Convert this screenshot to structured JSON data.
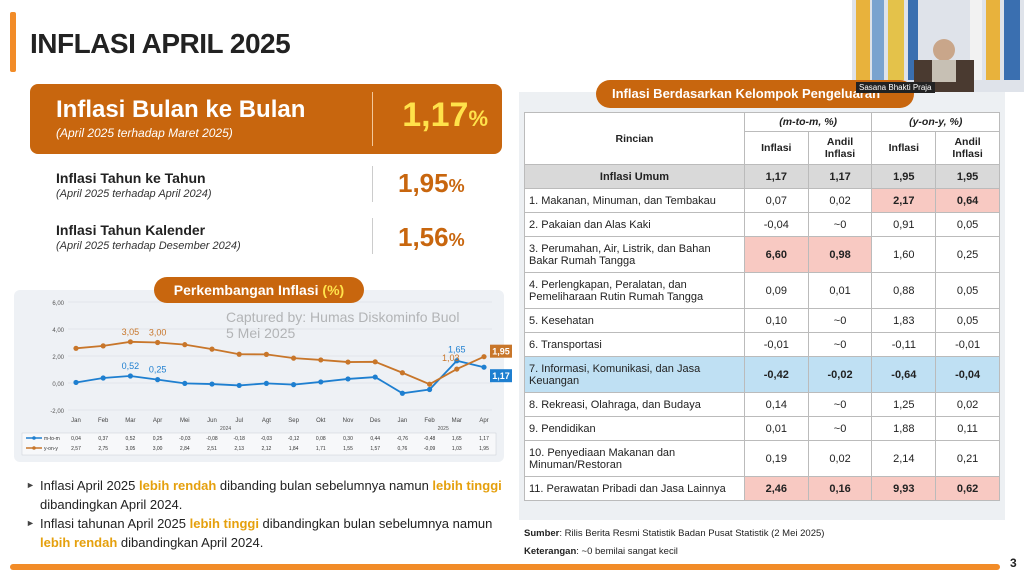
{
  "title": "INFLASI APRIL 2025",
  "mom": {
    "label": "Inflasi Bulan ke Bulan",
    "sub": "(April 2025 terhadap Maret 2025)",
    "value": "1,17",
    "unit": "%"
  },
  "yoy": {
    "label": "Inflasi Tahun ke Tahun",
    "sub": "(April 2025 terhadap April 2024)",
    "value": "1,95",
    "unit": "%"
  },
  "ytd": {
    "label": "Inflasi Tahun Kalender",
    "sub": "(April 2025 terhadap Desember 2024)",
    "value": "1,56",
    "unit": "%"
  },
  "chart_pill": {
    "text": "Perkembangan Inflasi ",
    "unit": "(%)"
  },
  "watermark": {
    "line1": "Captured by: Humas Diskominfo Buol",
    "line2": "5 Mei 2025"
  },
  "chart_data": {
    "type": "line",
    "categories": [
      "Jan",
      "Feb",
      "Mar",
      "Apr",
      "Mei",
      "Jun",
      "Jul",
      "Agt",
      "Sep",
      "Okt",
      "Nov",
      "Des",
      "Jan",
      "Feb",
      "Mar",
      "Apr"
    ],
    "year_labels": [
      "2024",
      "2025"
    ],
    "ylim": [
      -2,
      6
    ],
    "yticks": [
      "6,00",
      "4,00",
      "2,00",
      "0,00",
      "-2,00"
    ],
    "series": [
      {
        "name": "m-to-m",
        "color": "#1e7fd0",
        "values": [
          0.04,
          0.37,
          0.52,
          0.25,
          -0.03,
          -0.08,
          -0.18,
          -0.03,
          -0.12,
          0.08,
          0.3,
          0.44,
          -0.76,
          -0.48,
          1.65,
          1.17
        ],
        "labels": [
          "0,04",
          "0,37",
          "0,52",
          "0,25",
          "-0,03",
          "-0,08",
          "-0,18",
          "-0,03",
          "-0,12",
          "0,08",
          "0,30",
          "0,44",
          "-0,76",
          "-0,48",
          "1,65",
          "1,17"
        ]
      },
      {
        "name": "y-on-y",
        "color": "#c8762a",
        "values": [
          2.57,
          2.75,
          3.05,
          3.0,
          2.84,
          2.51,
          2.13,
          2.12,
          1.84,
          1.71,
          1.55,
          1.57,
          0.76,
          -0.09,
          1.03,
          1.95
        ],
        "labels": [
          "2,57",
          "2,75",
          "3,05",
          "3,00",
          "2,84",
          "2,51",
          "2,13",
          "2,12",
          "1,84",
          "1,71",
          "1,55",
          "1,57",
          "0,76",
          "-0,09",
          "1,03",
          "1,95"
        ]
      }
    ],
    "annotations": [
      {
        "series": 1,
        "index": 2,
        "text": "3,05"
      },
      {
        "series": 1,
        "index": 3,
        "text": "3,00"
      },
      {
        "series": 0,
        "index": 2,
        "text": "0,52"
      },
      {
        "series": 0,
        "index": 3,
        "text": "0,25"
      },
      {
        "series": 1,
        "index": 14,
        "text": "1,03"
      },
      {
        "series": 0,
        "index": 14,
        "text": "1,65"
      },
      {
        "series": 1,
        "index": 15,
        "text": "1,95",
        "boxed": true
      },
      {
        "series": 0,
        "index": 15,
        "text": "1,17",
        "boxed": true
      }
    ]
  },
  "bullets": [
    {
      "parts": [
        {
          "t": "Inflasi April 2025 "
        },
        {
          "t": "lebih rendah",
          "hl": true
        },
        {
          "t": " dibanding bulan sebelumnya namun "
        },
        {
          "t": "lebih tinggi",
          "hl": true
        },
        {
          "t": " dibandingkan April 2024."
        }
      ]
    },
    {
      "parts": [
        {
          "t": "Inflasi tahunan April 2025 "
        },
        {
          "t": "lebih tinggi",
          "hl": true
        },
        {
          "t": " dibandingkan bulan sebelumnya namun "
        },
        {
          "t": "lebih rendah",
          "hl": true
        },
        {
          "t": " dibandingkan April 2024."
        }
      ]
    }
  ],
  "table": {
    "title": "Inflasi Berdasarkan Kelompok Pengeluaran",
    "head": {
      "rincian": "Rincian",
      "mtm": "(m-to-m, %)",
      "yoy": "(y-on-y, %)",
      "inflasi": "Inflasi",
      "andil": "Andil Inflasi"
    },
    "rows": [
      {
        "name": "Inflasi Umum",
        "v": [
          "1,17",
          "1,17",
          "1,95",
          "1,95"
        ],
        "umum": true
      },
      {
        "name": "1. Makanan, Minuman, dan Tembakau",
        "v": [
          "0,07",
          "0,02",
          "2,17",
          "0,64"
        ],
        "pink": [
          2,
          3
        ]
      },
      {
        "name": "2. Pakaian dan Alas Kaki",
        "v": [
          "-0,04",
          "~0",
          "0,91",
          "0,05"
        ]
      },
      {
        "name": "3. Perumahan, Air, Listrik, dan Bahan Bakar Rumah Tangga",
        "v": [
          "6,60",
          "0,98",
          "1,60",
          "0,25"
        ],
        "pink": [
          0,
          1
        ]
      },
      {
        "name": "4. Perlengkapan, Peralatan, dan Pemeliharaan Rutin Rumah Tangga",
        "v": [
          "0,09",
          "0,01",
          "0,88",
          "0,05"
        ]
      },
      {
        "name": "5. Kesehatan",
        "v": [
          "0,10",
          "~0",
          "1,83",
          "0,05"
        ]
      },
      {
        "name": "6. Transportasi",
        "v": [
          "-0,01",
          "~0",
          "-0,11",
          "-0,01"
        ]
      },
      {
        "name": "7. Informasi, Komunikasi, dan Jasa Keuangan",
        "v": [
          "-0,42",
          "-0,02",
          "-0,64",
          "-0,04"
        ],
        "blue": true
      },
      {
        "name": "8. Rekreasi, Olahraga, dan Budaya",
        "v": [
          "0,14",
          "~0",
          "1,25",
          "0,02"
        ]
      },
      {
        "name": "9. Pendidikan",
        "v": [
          "0,01",
          "~0",
          "1,88",
          "0,11"
        ]
      },
      {
        "name": "10. Penyediaan Makanan dan Minuman/Restoran",
        "v": [
          "0,19",
          "0,02",
          "2,14",
          "0,21"
        ]
      },
      {
        "name": "11. Perawatan Pribadi dan Jasa Lainnya",
        "v": [
          "2,46",
          "0,16",
          "9,93",
          "0,62"
        ],
        "pink": [
          0,
          1,
          2,
          3
        ]
      }
    ]
  },
  "source": {
    "label": "Sumber",
    "text": ": Rilis Berita Resmi Statistik Badan Pusat Statistik (2 Mei 2025)"
  },
  "note": {
    "label": "Keterangan",
    "text": ": ~0 bemilai sangat kecil"
  },
  "page_number": "3",
  "video": {
    "label": "Sasana Bhakti Praja"
  }
}
